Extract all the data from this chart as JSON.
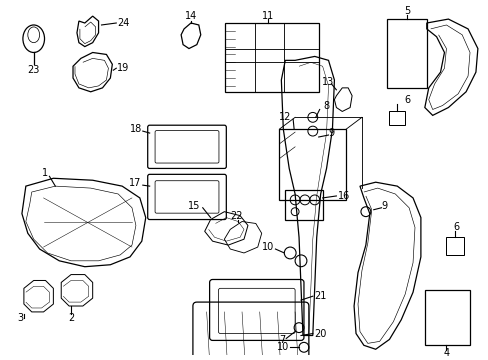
{
  "background_color": "#ffffff",
  "line_color": "#000000",
  "fig_width": 4.89,
  "fig_height": 3.6,
  "label_fontsize": 7.0
}
